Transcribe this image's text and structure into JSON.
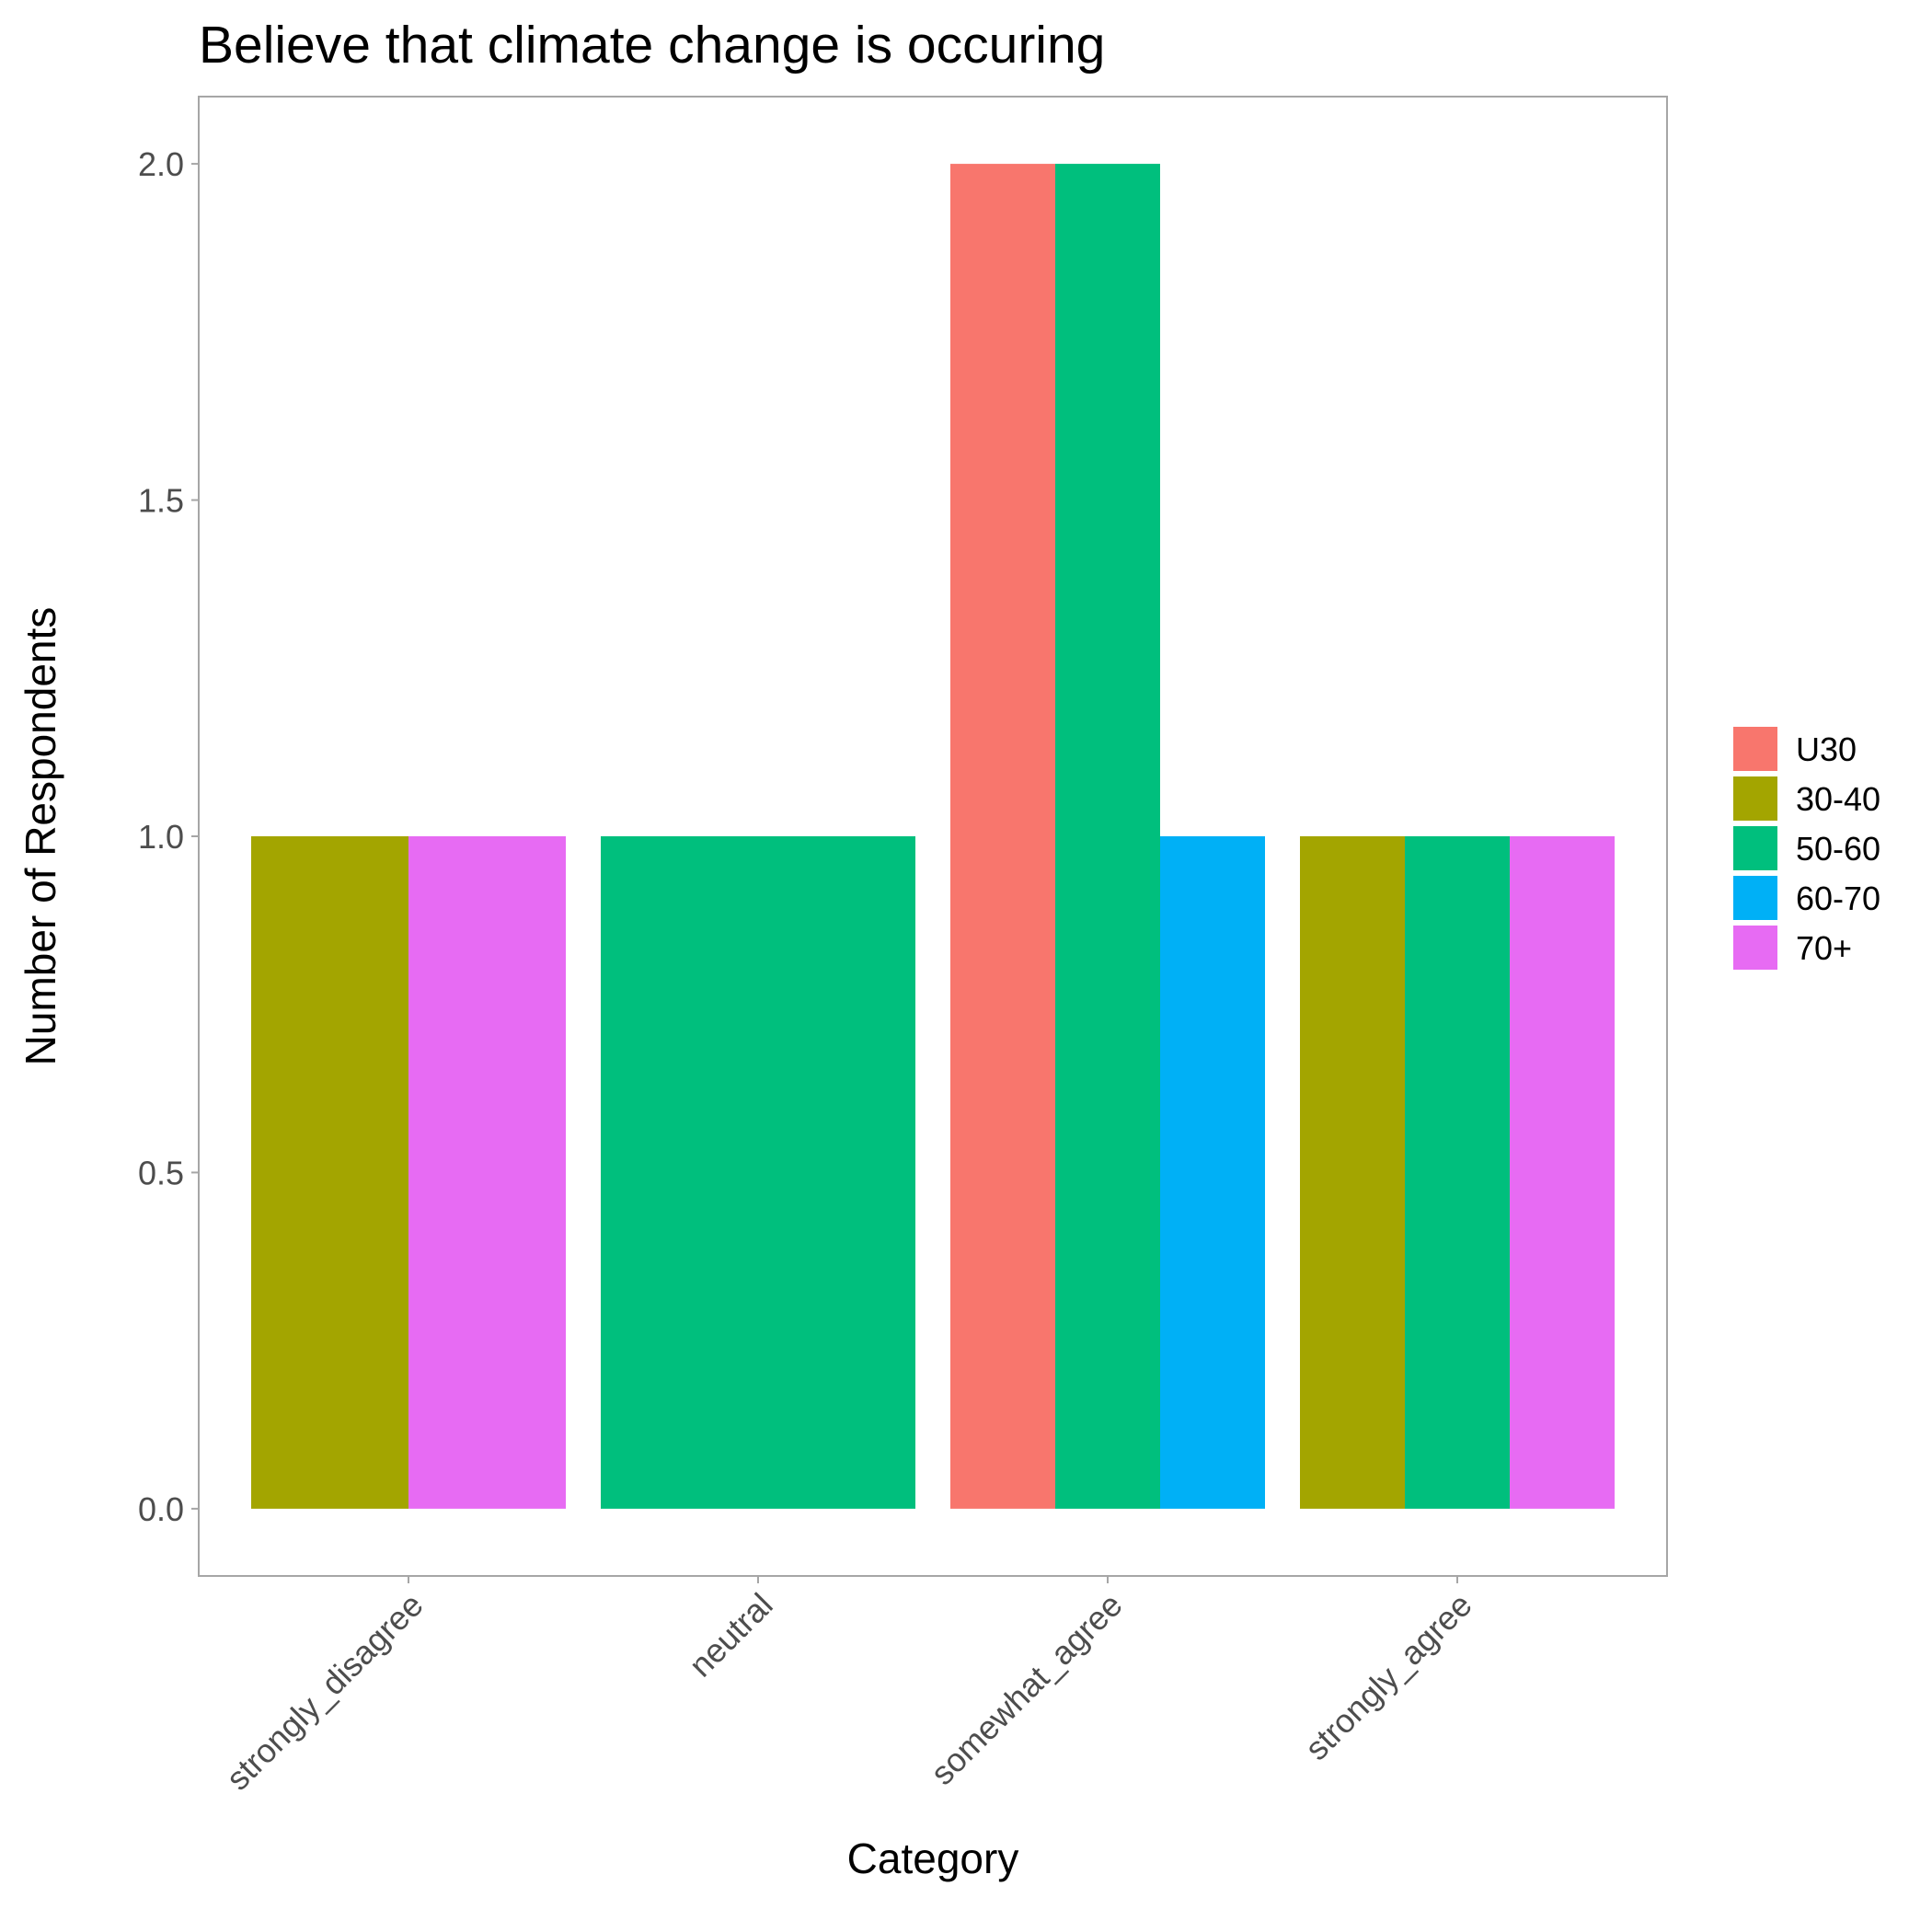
{
  "chart_data": {
    "type": "bar",
    "title": "Believe that climate change is occuring",
    "xlabel": "Category",
    "ylabel": "Number of Respondents",
    "ylim": [
      -0.1,
      2.1
    ],
    "yticks": [
      "0.0",
      "0.5",
      "1.0",
      "1.5",
      "2.0"
    ],
    "ytick_values": [
      0,
      0.5,
      1.0,
      1.5,
      2.0
    ],
    "grid": false,
    "legend_position": "right",
    "position": "dodge2",
    "categories": [
      "strongly_disagree",
      "neutral",
      "somewhat_agree",
      "strongly_agree"
    ],
    "series": [
      {
        "name": "U30",
        "color": "#F8766D",
        "values": [
          null,
          null,
          2,
          null
        ]
      },
      {
        "name": "30-40",
        "color": "#A3A500",
        "values": [
          1,
          null,
          null,
          1
        ]
      },
      {
        "name": "50-60",
        "color": "#00BF7D",
        "values": [
          null,
          1,
          2,
          1
        ]
      },
      {
        "name": "60-70",
        "color": "#00B0F6",
        "values": [
          null,
          null,
          1,
          null
        ]
      },
      {
        "name": "70+",
        "color": "#E76BF3",
        "values": [
          1,
          null,
          null,
          1
        ]
      }
    ]
  }
}
